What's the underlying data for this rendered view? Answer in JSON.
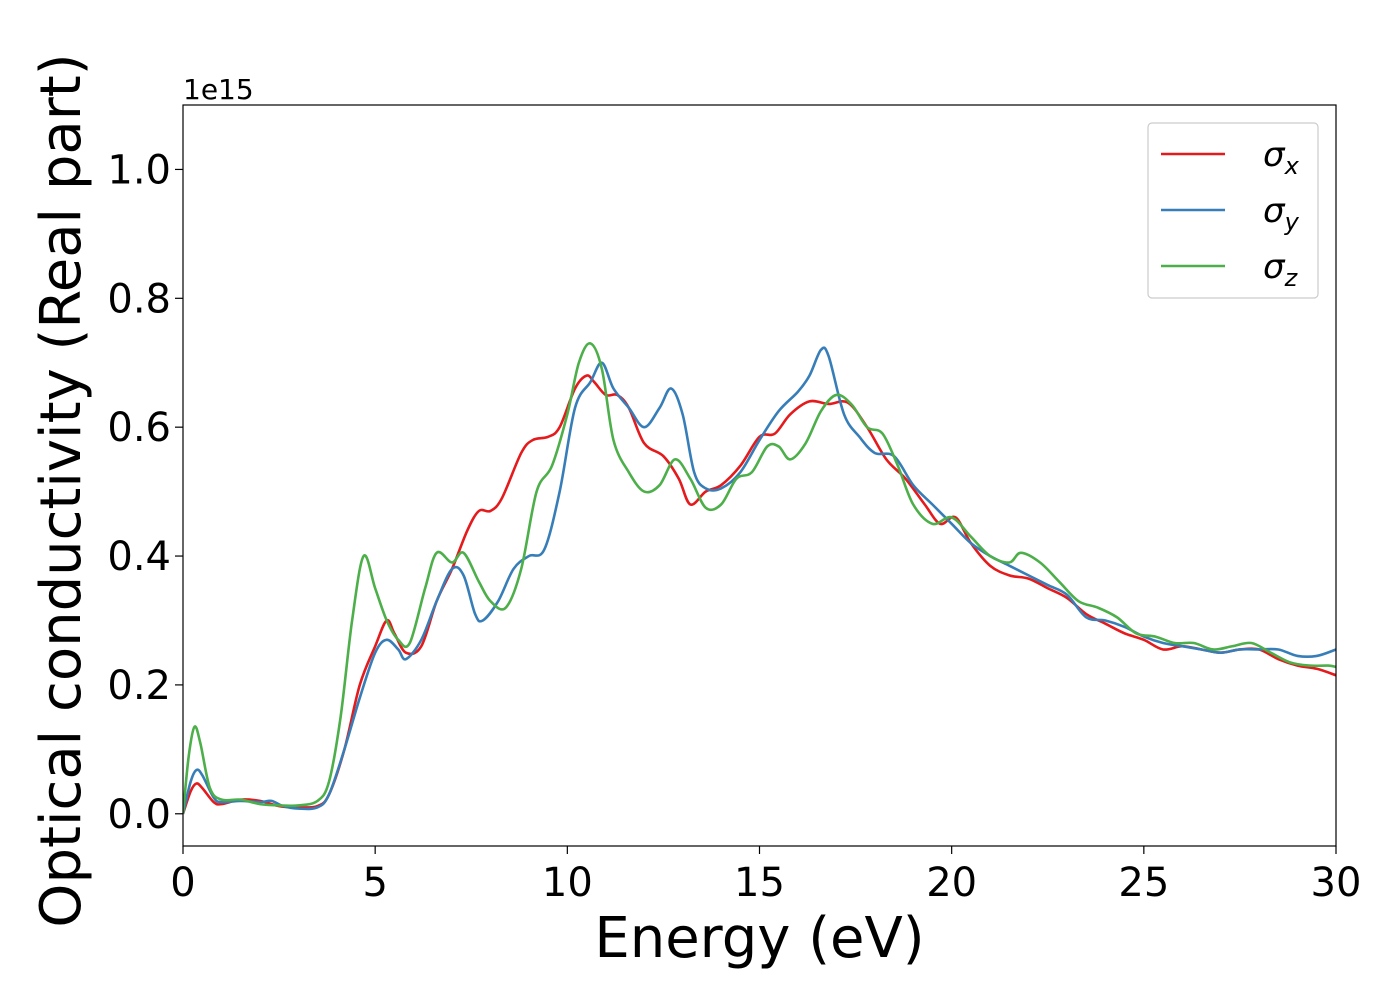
{
  "chart_data": {
    "type": "line",
    "xlabel": "Energy (eV)",
    "ylabel": "Optical conductivity (Real part)",
    "y_offset_text": "1e15",
    "xlim": [
      0,
      30
    ],
    "ylim": [
      -0.05,
      1.1
    ],
    "x_ticks": [
      0,
      5,
      10,
      15,
      20,
      25,
      30
    ],
    "x_tick_labels": [
      "0",
      "5",
      "10",
      "15",
      "20",
      "25",
      "30"
    ],
    "y_ticks": [
      0.0,
      0.2,
      0.4,
      0.6,
      0.8,
      1.0
    ],
    "y_tick_labels": [
      "0.0",
      "0.2",
      "0.4",
      "0.6",
      "0.8",
      "1.0"
    ],
    "grid": false,
    "legend_position": "top-right",
    "series": [
      {
        "name": "σx",
        "symbol": "σ",
        "subscript": "x",
        "color": "#e41a1c",
        "points": [
          [
            0,
            0.0
          ],
          [
            0.2,
            0.035
          ],
          [
            0.35,
            0.047
          ],
          [
            0.5,
            0.04
          ],
          [
            0.8,
            0.018
          ],
          [
            1.0,
            0.015
          ],
          [
            1.5,
            0.022
          ],
          [
            2.0,
            0.02
          ],
          [
            2.5,
            0.012
          ],
          [
            3.0,
            0.01
          ],
          [
            3.5,
            0.012
          ],
          [
            3.8,
            0.03
          ],
          [
            4.2,
            0.1
          ],
          [
            4.6,
            0.2
          ],
          [
            5.0,
            0.26
          ],
          [
            5.3,
            0.3
          ],
          [
            5.5,
            0.28
          ],
          [
            5.8,
            0.25
          ],
          [
            6.2,
            0.26
          ],
          [
            6.6,
            0.33
          ],
          [
            7.0,
            0.38
          ],
          [
            7.4,
            0.44
          ],
          [
            7.7,
            0.47
          ],
          [
            8.0,
            0.47
          ],
          [
            8.3,
            0.49
          ],
          [
            8.8,
            0.56
          ],
          [
            9.1,
            0.58
          ],
          [
            9.5,
            0.585
          ],
          [
            9.8,
            0.6
          ],
          [
            10.2,
            0.66
          ],
          [
            10.5,
            0.68
          ],
          [
            10.7,
            0.67
          ],
          [
            11.0,
            0.65
          ],
          [
            11.3,
            0.65
          ],
          [
            11.6,
            0.63
          ],
          [
            12.0,
            0.575
          ],
          [
            12.5,
            0.555
          ],
          [
            12.9,
            0.52
          ],
          [
            13.2,
            0.48
          ],
          [
            13.6,
            0.5
          ],
          [
            14.0,
            0.51
          ],
          [
            14.5,
            0.54
          ],
          [
            15.0,
            0.585
          ],
          [
            15.4,
            0.59
          ],
          [
            15.8,
            0.62
          ],
          [
            16.3,
            0.64
          ],
          [
            16.8,
            0.636
          ],
          [
            17.3,
            0.638
          ],
          [
            17.8,
            0.6
          ],
          [
            18.3,
            0.55
          ],
          [
            18.8,
            0.52
          ],
          [
            19.3,
            0.48
          ],
          [
            19.7,
            0.45
          ],
          [
            20.1,
            0.46
          ],
          [
            20.5,
            0.42
          ],
          [
            21.0,
            0.385
          ],
          [
            21.5,
            0.37
          ],
          [
            22.0,
            0.365
          ],
          [
            22.5,
            0.35
          ],
          [
            23.0,
            0.335
          ],
          [
            23.5,
            0.31
          ],
          [
            24.0,
            0.295
          ],
          [
            24.5,
            0.28
          ],
          [
            25.0,
            0.27
          ],
          [
            25.5,
            0.255
          ],
          [
            26.0,
            0.26
          ],
          [
            26.5,
            0.255
          ],
          [
            27.0,
            0.25
          ],
          [
            27.5,
            0.255
          ],
          [
            28.0,
            0.255
          ],
          [
            28.5,
            0.24
          ],
          [
            29.0,
            0.23
          ],
          [
            29.5,
            0.225
          ],
          [
            30.0,
            0.215
          ]
        ]
      },
      {
        "name": "σy",
        "symbol": "σ",
        "subscript": "y",
        "color": "#377eb8",
        "points": [
          [
            0,
            0.0
          ],
          [
            0.2,
            0.05
          ],
          [
            0.35,
            0.068
          ],
          [
            0.5,
            0.06
          ],
          [
            0.8,
            0.025
          ],
          [
            1.0,
            0.018
          ],
          [
            1.5,
            0.02
          ],
          [
            2.0,
            0.018
          ],
          [
            2.3,
            0.02
          ],
          [
            2.6,
            0.012
          ],
          [
            3.0,
            0.008
          ],
          [
            3.5,
            0.01
          ],
          [
            3.8,
            0.03
          ],
          [
            4.2,
            0.1
          ],
          [
            4.6,
            0.18
          ],
          [
            5.0,
            0.25
          ],
          [
            5.3,
            0.27
          ],
          [
            5.6,
            0.255
          ],
          [
            5.8,
            0.24
          ],
          [
            6.2,
            0.27
          ],
          [
            6.6,
            0.33
          ],
          [
            7.0,
            0.38
          ],
          [
            7.3,
            0.37
          ],
          [
            7.6,
            0.31
          ],
          [
            7.8,
            0.3
          ],
          [
            8.2,
            0.33
          ],
          [
            8.6,
            0.38
          ],
          [
            9.0,
            0.4
          ],
          [
            9.4,
            0.41
          ],
          [
            9.8,
            0.5
          ],
          [
            10.2,
            0.63
          ],
          [
            10.6,
            0.67
          ],
          [
            10.9,
            0.7
          ],
          [
            11.2,
            0.66
          ],
          [
            11.6,
            0.63
          ],
          [
            12.0,
            0.6
          ],
          [
            12.4,
            0.63
          ],
          [
            12.7,
            0.66
          ],
          [
            13.0,
            0.62
          ],
          [
            13.3,
            0.53
          ],
          [
            13.6,
            0.505
          ],
          [
            14.0,
            0.505
          ],
          [
            14.5,
            0.53
          ],
          [
            15.0,
            0.58
          ],
          [
            15.5,
            0.625
          ],
          [
            16.0,
            0.655
          ],
          [
            16.3,
            0.68
          ],
          [
            16.6,
            0.72
          ],
          [
            16.8,
            0.71
          ],
          [
            17.2,
            0.62
          ],
          [
            17.6,
            0.585
          ],
          [
            18.0,
            0.56
          ],
          [
            18.5,
            0.555
          ],
          [
            19.0,
            0.51
          ],
          [
            19.5,
            0.48
          ],
          [
            20.0,
            0.45
          ],
          [
            20.5,
            0.42
          ],
          [
            21.0,
            0.4
          ],
          [
            21.5,
            0.385
          ],
          [
            22.0,
            0.37
          ],
          [
            22.5,
            0.355
          ],
          [
            23.0,
            0.34
          ],
          [
            23.5,
            0.305
          ],
          [
            24.0,
            0.3
          ],
          [
            24.5,
            0.29
          ],
          [
            25.0,
            0.275
          ],
          [
            25.5,
            0.265
          ],
          [
            26.0,
            0.26
          ],
          [
            26.5,
            0.255
          ],
          [
            27.0,
            0.25
          ],
          [
            27.5,
            0.255
          ],
          [
            28.0,
            0.255
          ],
          [
            28.5,
            0.255
          ],
          [
            29.0,
            0.245
          ],
          [
            29.5,
            0.245
          ],
          [
            30.0,
            0.255
          ]
        ]
      },
      {
        "name": "σz",
        "symbol": "σ",
        "subscript": "z",
        "color": "#4daf4a",
        "points": [
          [
            0,
            0.0
          ],
          [
            0.15,
            0.09
          ],
          [
            0.3,
            0.135
          ],
          [
            0.45,
            0.11
          ],
          [
            0.7,
            0.04
          ],
          [
            1.0,
            0.022
          ],
          [
            1.5,
            0.022
          ],
          [
            2.0,
            0.015
          ],
          [
            2.5,
            0.013
          ],
          [
            3.0,
            0.013
          ],
          [
            3.5,
            0.02
          ],
          [
            3.8,
            0.05
          ],
          [
            4.1,
            0.15
          ],
          [
            4.4,
            0.3
          ],
          [
            4.7,
            0.4
          ],
          [
            5.0,
            0.35
          ],
          [
            5.3,
            0.3
          ],
          [
            5.6,
            0.27
          ],
          [
            5.9,
            0.265
          ],
          [
            6.3,
            0.35
          ],
          [
            6.6,
            0.405
          ],
          [
            7.0,
            0.39
          ],
          [
            7.3,
            0.405
          ],
          [
            7.7,
            0.36
          ],
          [
            8.0,
            0.33
          ],
          [
            8.4,
            0.32
          ],
          [
            8.8,
            0.38
          ],
          [
            9.2,
            0.5
          ],
          [
            9.6,
            0.54
          ],
          [
            10.0,
            0.62
          ],
          [
            10.3,
            0.7
          ],
          [
            10.6,
            0.73
          ],
          [
            10.9,
            0.69
          ],
          [
            11.2,
            0.58
          ],
          [
            11.6,
            0.53
          ],
          [
            12.0,
            0.5
          ],
          [
            12.4,
            0.51
          ],
          [
            12.8,
            0.55
          ],
          [
            13.2,
            0.52
          ],
          [
            13.6,
            0.475
          ],
          [
            14.0,
            0.48
          ],
          [
            14.4,
            0.52
          ],
          [
            14.8,
            0.53
          ],
          [
            15.2,
            0.57
          ],
          [
            15.5,
            0.57
          ],
          [
            15.8,
            0.55
          ],
          [
            16.2,
            0.575
          ],
          [
            16.6,
            0.625
          ],
          [
            17.0,
            0.65
          ],
          [
            17.4,
            0.635
          ],
          [
            17.8,
            0.6
          ],
          [
            18.2,
            0.59
          ],
          [
            18.6,
            0.54
          ],
          [
            19.0,
            0.48
          ],
          [
            19.5,
            0.45
          ],
          [
            20.0,
            0.46
          ],
          [
            20.5,
            0.43
          ],
          [
            21.0,
            0.4
          ],
          [
            21.5,
            0.39
          ],
          [
            21.8,
            0.405
          ],
          [
            22.3,
            0.39
          ],
          [
            22.8,
            0.36
          ],
          [
            23.3,
            0.33
          ],
          [
            23.8,
            0.32
          ],
          [
            24.3,
            0.305
          ],
          [
            24.8,
            0.28
          ],
          [
            25.3,
            0.275
          ],
          [
            25.8,
            0.265
          ],
          [
            26.3,
            0.265
          ],
          [
            26.8,
            0.255
          ],
          [
            27.3,
            0.26
          ],
          [
            27.8,
            0.265
          ],
          [
            28.3,
            0.25
          ],
          [
            28.8,
            0.235
          ],
          [
            29.3,
            0.23
          ],
          [
            29.8,
            0.23
          ],
          [
            30.0,
            0.228
          ]
        ]
      }
    ]
  }
}
